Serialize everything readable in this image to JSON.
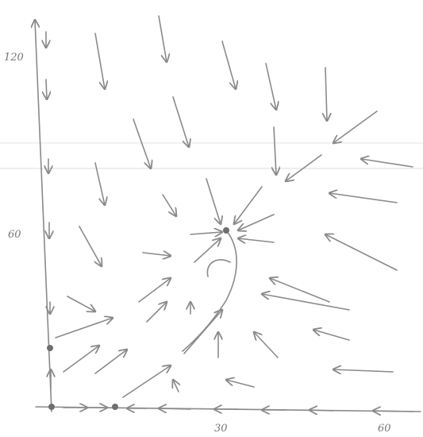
{
  "axes": {
    "y_tick_labels": [
      "120",
      "60"
    ],
    "x_tick_labels": [
      "30",
      "60"
    ]
  }
}
